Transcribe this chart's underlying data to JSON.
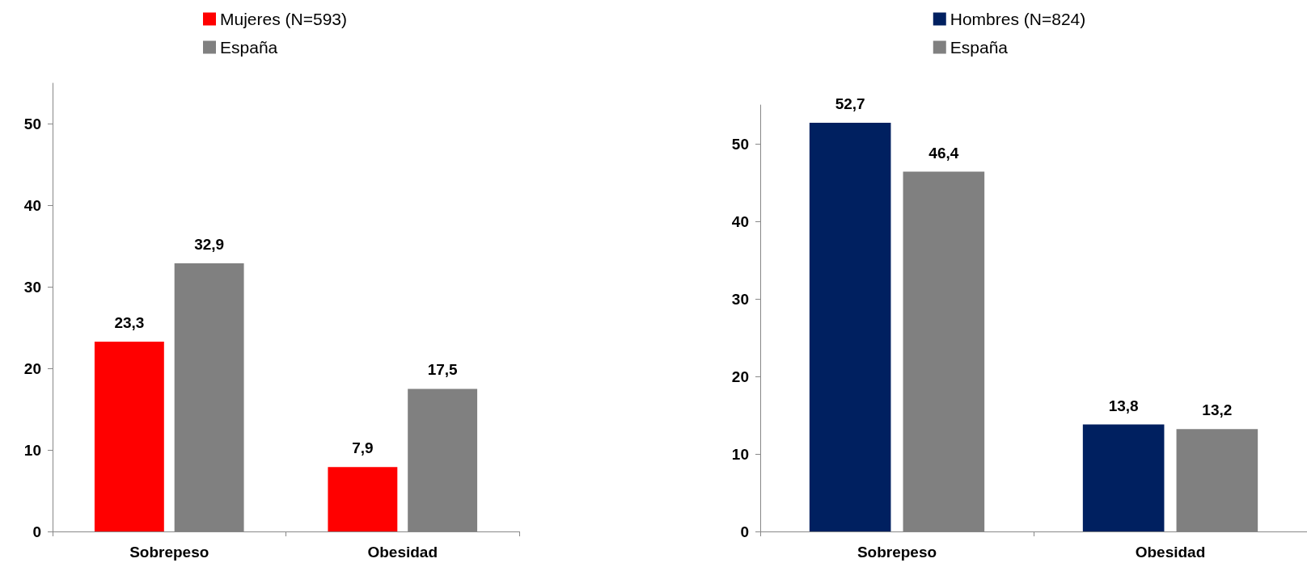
{
  "chart_data": [
    {
      "type": "bar",
      "categories": [
        "Sobrepeso",
        "Obesidad"
      ],
      "series": [
        {
          "name": "Mujeres (N=593)",
          "color": "#ff0000",
          "values": [
            23.3,
            7.9
          ],
          "value_labels": [
            "23,3",
            "7,9"
          ]
        },
        {
          "name": "España",
          "color": "#808080",
          "values": [
            32.9,
            17.5
          ],
          "value_labels": [
            "32,9",
            "17,5"
          ]
        }
      ],
      "ylim": [
        0,
        55
      ],
      "yticks": [
        0,
        10,
        20,
        30,
        40,
        50
      ],
      "grid": false,
      "legend": "top"
    },
    {
      "type": "bar",
      "categories": [
        "Sobrepeso",
        "Obesidad"
      ],
      "series": [
        {
          "name": "Hombres (N=824)",
          "color": "#002060",
          "values": [
            52.7,
            13.8
          ],
          "value_labels": [
            "52,7",
            "13,8"
          ]
        },
        {
          "name": "España",
          "color": "#808080",
          "values": [
            46.4,
            13.2
          ],
          "value_labels": [
            "46,4",
            "13,2"
          ]
        }
      ],
      "ylim": [
        0,
        55
      ],
      "yticks": [
        0,
        10,
        20,
        30,
        40,
        50
      ],
      "grid": false,
      "legend": "top"
    }
  ]
}
